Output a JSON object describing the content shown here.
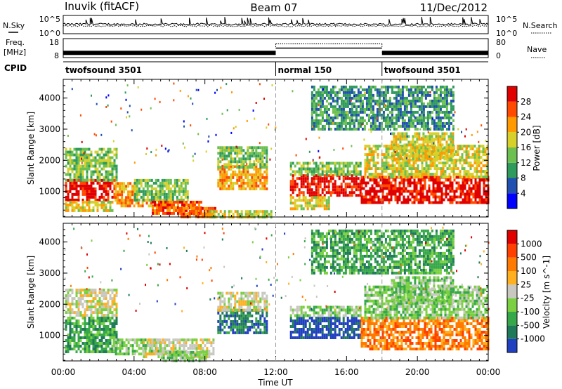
{
  "header": {
    "station": "Inuvik (fitACF)",
    "beam": "Beam 07",
    "date": "11/Dec/2012"
  },
  "noise_panel": {
    "left_label": "N.Sky",
    "left_ticks": [
      "10^5",
      "10^0"
    ],
    "right_ticks": [
      "10^5",
      "10^0"
    ],
    "right_label": "N.Search"
  },
  "freq_panel": {
    "left_label_top": "Freq.",
    "left_label_bottom": "[MHz]",
    "left_ticks": [
      "18",
      "8"
    ],
    "right_ticks": [
      "80",
      "0"
    ],
    "right_label": "Nave",
    "segments": [
      {
        "start_h": 0,
        "end_h": 12,
        "freq_mhz": 11,
        "nave": 22
      },
      {
        "start_h": 12,
        "end_h": 18,
        "freq_mhz": 13,
        "nave": 58
      },
      {
        "start_h": 18,
        "end_h": 24,
        "freq_mhz": 11,
        "nave": 22
      }
    ]
  },
  "cpid_panel": {
    "label": "CPID",
    "modes": [
      {
        "name": "twofsound 3501",
        "start_h": 0
      },
      {
        "name": "normal 150",
        "start_h": 12
      },
      {
        "name": "twofsound 3501",
        "start_h": 18
      }
    ]
  },
  "chart_data": [
    {
      "type": "heatmap",
      "parameter": "Power",
      "ylabel": "Slant Range [km]",
      "colorbar_label": "Power [dB]",
      "xlim_hours": [
        0,
        24
      ],
      "ylim": [
        180,
        4600
      ],
      "yticks": [
        "1000",
        "2000",
        "3000",
        "4000"
      ],
      "colorbar_ticks": [
        "4",
        "8",
        "12",
        "16",
        "20",
        "24",
        "28"
      ],
      "colors": [
        "#0000ff",
        "#2050b0",
        "#2e9a5c",
        "#6dc050",
        "#d8d02a",
        "#ff9a00",
        "#ff4a00",
        "#e00000"
      ],
      "regions": [
        {
          "t0": 0.1,
          "t1": 2.9,
          "r0": 700,
          "r1": 1400,
          "level": 7
        },
        {
          "t0": 0.1,
          "t1": 3.0,
          "r0": 1400,
          "r1": 2400,
          "level": 3
        },
        {
          "t0": 0.1,
          "t1": 2.8,
          "r0": 380,
          "r1": 700,
          "level": 4
        },
        {
          "t0": 2.9,
          "t1": 4.2,
          "r0": 700,
          "r1": 1300,
          "level": 5
        },
        {
          "t0": 3.0,
          "t1": 5.8,
          "r0": 500,
          "r1": 760,
          "level": 5
        },
        {
          "t0": 4.0,
          "t1": 7.0,
          "r0": 760,
          "r1": 1400,
          "level": 3
        },
        {
          "t0": 5.0,
          "t1": 7.8,
          "r0": 280,
          "r1": 700,
          "level": 6
        },
        {
          "t0": 6.5,
          "t1": 8.6,
          "r0": 200,
          "r1": 500,
          "level": 6
        },
        {
          "t0": 8.7,
          "t1": 11.5,
          "r0": 1050,
          "r1": 1850,
          "level": 5
        },
        {
          "t0": 8.7,
          "t1": 11.5,
          "r0": 1750,
          "r1": 2450,
          "level": 3
        },
        {
          "t0": 8.0,
          "t1": 11.8,
          "r0": 180,
          "r1": 400,
          "level": 4
        },
        {
          "t0": 12.8,
          "t1": 16.8,
          "r0": 850,
          "r1": 1550,
          "level": 7
        },
        {
          "t0": 12.8,
          "t1": 16.8,
          "r0": 1550,
          "r1": 1950,
          "level": 3
        },
        {
          "t0": 12.8,
          "t1": 15.0,
          "r0": 400,
          "r1": 850,
          "level": 4
        },
        {
          "t0": 16.8,
          "t1": 24.0,
          "r0": 650,
          "r1": 1500,
          "level": 7
        },
        {
          "t0": 17.0,
          "t1": 24.0,
          "r0": 1500,
          "r1": 2500,
          "level": 4
        },
        {
          "t0": 18.5,
          "t1": 22.0,
          "r0": 2000,
          "r1": 2900,
          "level": 4
        },
        {
          "t0": 14.0,
          "t1": 22.0,
          "r0": 3000,
          "r1": 4400,
          "level": 2
        }
      ]
    },
    {
      "type": "heatmap",
      "parameter": "Velocity",
      "ylabel": "Slant Range [km]",
      "colorbar_label": "Velocity [m s^-1]",
      "xlabel": "Time UT",
      "xlim_hours": [
        0,
        24
      ],
      "ylim": [
        180,
        4600
      ],
      "yticks": [
        "1000",
        "2000",
        "3000",
        "4000"
      ],
      "xticks": [
        "00:00",
        "04:00",
        "08:00",
        "12:00",
        "16:00",
        "20:00",
        "00:00"
      ],
      "colorbar_ticks": [
        "1000",
        "500",
        "100",
        "25",
        "-25",
        "-100",
        "-500",
        "-1000"
      ],
      "colors": [
        "#2040c0",
        "#1f7a5a",
        "#37a84a",
        "#7ad040",
        "#c8c8c0",
        "#ffb020",
        "#ff7a00",
        "#ff4000",
        "#e00000"
      ],
      "regions": [
        {
          "t0": 0.1,
          "t1": 3.0,
          "r0": 500,
          "r1": 1600,
          "level": 2
        },
        {
          "t0": 0.1,
          "t1": 3.0,
          "r0": 1600,
          "r1": 2500,
          "level": 4
        },
        {
          "t0": 2.8,
          "t1": 5.5,
          "r0": 380,
          "r1": 900,
          "level": 3
        },
        {
          "t0": 4.5,
          "t1": 8.5,
          "r0": 300,
          "r1": 900,
          "level": 4
        },
        {
          "t0": 5.5,
          "t1": 8.0,
          "r0": 200,
          "r1": 500,
          "level": 3
        },
        {
          "t0": 8.7,
          "t1": 11.5,
          "r0": 1050,
          "r1": 1850,
          "level": 1
        },
        {
          "t0": 8.7,
          "t1": 11.5,
          "r0": 1800,
          "r1": 2400,
          "level": 4
        },
        {
          "t0": 12.8,
          "t1": 16.8,
          "r0": 900,
          "r1": 1600,
          "level": 0
        },
        {
          "t0": 12.8,
          "t1": 16.8,
          "r0": 1600,
          "r1": 1950,
          "level": 3
        },
        {
          "t0": 16.8,
          "t1": 24.0,
          "r0": 600,
          "r1": 1600,
          "level": 6
        },
        {
          "t0": 17.0,
          "t1": 24.0,
          "r0": 1600,
          "r1": 2600,
          "level": 3
        },
        {
          "t0": 18.5,
          "t1": 22.0,
          "r0": 2000,
          "r1": 2900,
          "level": 3
        },
        {
          "t0": 14.0,
          "t1": 22.0,
          "r0": 3000,
          "r1": 4400,
          "level": 2
        }
      ]
    }
  ]
}
